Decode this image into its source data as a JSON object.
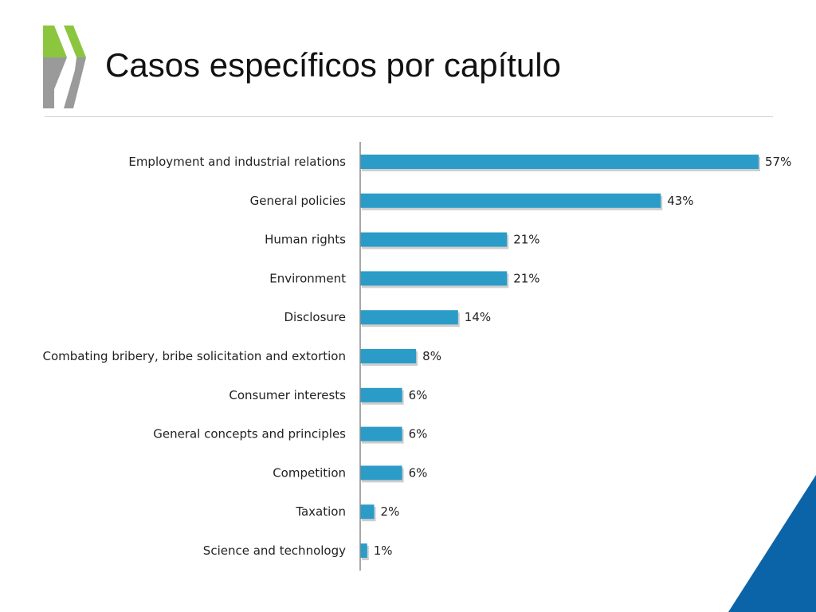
{
  "slide": {
    "title": "Casos específicos por capítulo"
  },
  "colors": {
    "bar": "#2b9cc7",
    "bar_shadow": "#a6a6a6",
    "logo_green": "#8cc63f",
    "logo_gray": "#9a9a9a",
    "corner_blue": "#0b64a8",
    "text": "#222222"
  },
  "icons": {
    "logo": "double-chevron-logo"
  },
  "chart_data": {
    "type": "bar",
    "orientation": "horizontal",
    "categories": [
      "Employment and industrial relations",
      "General policies",
      "Human rights",
      "Environment",
      "Disclosure",
      "Combating bribery, bribe solicitation and extortion",
      "Consumer interests",
      "General concepts and principles",
      "Competition",
      "Taxation",
      "Science and technology"
    ],
    "values": [
      57,
      43,
      21,
      21,
      14,
      8,
      6,
      6,
      6,
      2,
      1
    ],
    "data_labels": [
      "57%",
      "43%",
      "21%",
      "21%",
      "14%",
      "8%",
      "6%",
      "6%",
      "6%",
      "2%",
      "1%"
    ],
    "xlim": [
      0,
      57
    ],
    "grid": false,
    "legend": "none"
  }
}
